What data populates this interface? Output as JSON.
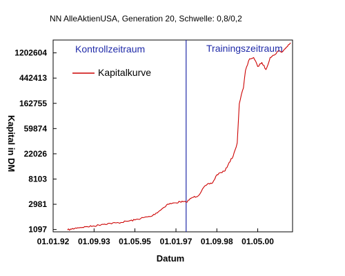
{
  "chart_data": {
    "type": "line",
    "title": "NN AlleAktienUSA, Generation 20, Schwelle: 0,8/0,2",
    "xlabel": "Datum",
    "ylabel": "Kapital in DM",
    "y_scale": "log",
    "x_tick_labels": [
      "01.01.92",
      "01.09.93",
      "01.05.95",
      "01.01.97",
      "01.09.98",
      "01.05.00"
    ],
    "x_tick_dates": [
      "1992-01-01",
      "1993-09-01",
      "1995-05-01",
      "1997-01-01",
      "1998-09-01",
      "2000-05-01"
    ],
    "x_range": [
      "1992-01-01",
      "2001-10-01"
    ],
    "y_ticks": [
      1097,
      2981,
      8103,
      22026,
      59874,
      162755,
      442413,
      1202604
    ],
    "y_tick_labels": [
      "1097",
      "2981",
      "8103",
      "22026",
      "59874",
      "162755",
      "442413",
      "1202604"
    ],
    "y_range": [
      1000,
      2000000
    ],
    "grid": false,
    "legend": {
      "placement": "top-left",
      "entries": [
        {
          "name": "Kapitalkurve",
          "color": "#cc0000"
        }
      ]
    },
    "regions": [
      {
        "label": "Kontrollzeitraum",
        "side": "left"
      },
      {
        "label": "Trainingszeitraum",
        "side": "right"
      }
    ],
    "split_date": "1997-06-01",
    "colors": {
      "series": "#cc0000",
      "split_line": "#1f2aa8",
      "region_label": "#1f2aa8"
    },
    "series": [
      {
        "name": "Kapitalkurve",
        "x": [
          "1992-08-01",
          "1992-10-01",
          "1993-01-01",
          "1993-05-01",
          "1993-09-01",
          "1994-01-01",
          "1994-05-01",
          "1994-09-01",
          "1995-01-01",
          "1995-05-01",
          "1995-09-01",
          "1996-01-01",
          "1996-05-01",
          "1996-09-01",
          "1997-01-01",
          "1997-03-01",
          "1997-06-01",
          "1997-09-01",
          "1997-12-01",
          "1998-02-01",
          "1998-04-01",
          "1998-07-01",
          "1998-09-01",
          "1998-11-01",
          "1999-01-01",
          "1999-03-01",
          "1999-05-01",
          "1999-06-01",
          "1999-07-01",
          "1999-08-01",
          "1999-09-01",
          "1999-10-01",
          "1999-11-01",
          "2000-01-01",
          "2000-03-01",
          "2000-05-01",
          "2000-07-01",
          "2000-09-01",
          "2000-11-01",
          "2001-01-01",
          "2001-03-01",
          "2001-05-01",
          "2001-07-01",
          "2001-09-01"
        ],
        "y": [
          1080,
          1110,
          1180,
          1220,
          1260,
          1350,
          1400,
          1430,
          1520,
          1600,
          1750,
          1850,
          2300,
          3000,
          3150,
          3300,
          3250,
          3900,
          4200,
          5500,
          6400,
          7000,
          9600,
          10500,
          11200,
          15500,
          20000,
          26000,
          34000,
          160000,
          230000,
          300000,
          600000,
          950000,
          1000000,
          700000,
          820000,
          620000,
          1000000,
          1100000,
          1300000,
          1250000,
          1500000,
          1800000
        ]
      }
    ]
  }
}
